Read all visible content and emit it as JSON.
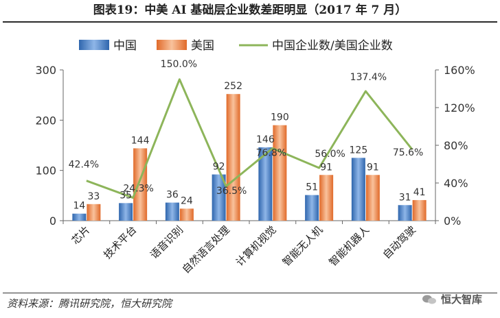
{
  "title": "图表19：中美 AI 基础层企业数差距明显（2017 年 7 月）",
  "source": "资料来源：腾讯研究院，恒大研究院",
  "watermark": "恒大智库",
  "colors": {
    "china": "#4a7fc4",
    "usa": "#ec8a4f",
    "ratio": "#8db55a",
    "axis": "#555555",
    "text": "#333333"
  },
  "chart_data": {
    "type": "bar",
    "categories": [
      "芯片",
      "技术平台",
      "语音识别",
      "自然语言处理",
      "计算机视觉",
      "智能无人机",
      "智能机器人",
      "自动驾驶"
    ],
    "series": [
      {
        "name": "中国",
        "type": "bar",
        "axis": "left",
        "values": [
          14,
          35,
          36,
          92,
          146,
          51,
          125,
          31
        ]
      },
      {
        "name": "美国",
        "type": "bar",
        "axis": "left",
        "values": [
          33,
          144,
          24,
          252,
          190,
          91,
          91,
          41
        ]
      },
      {
        "name": "中国企业数/美国企业数",
        "type": "line",
        "axis": "right",
        "values": [
          42.4,
          24.3,
          150.0,
          36.5,
          76.8,
          56.0,
          137.4,
          75.6
        ]
      }
    ],
    "ratio_labels": [
      "42.4%",
      "24.3%",
      "150.0%",
      "36.5%",
      "76.8%",
      "56.0%",
      "137.4%",
      "75.6%"
    ],
    "y_left": {
      "lim": [
        0,
        300
      ],
      "ticks": [
        "0",
        "100",
        "200",
        "300"
      ]
    },
    "y_right": {
      "lim": [
        0,
        160
      ],
      "ticks": [
        "0%",
        "40%",
        "80%",
        "120%",
        "160%"
      ]
    },
    "legend_position": "top",
    "grid": false
  }
}
